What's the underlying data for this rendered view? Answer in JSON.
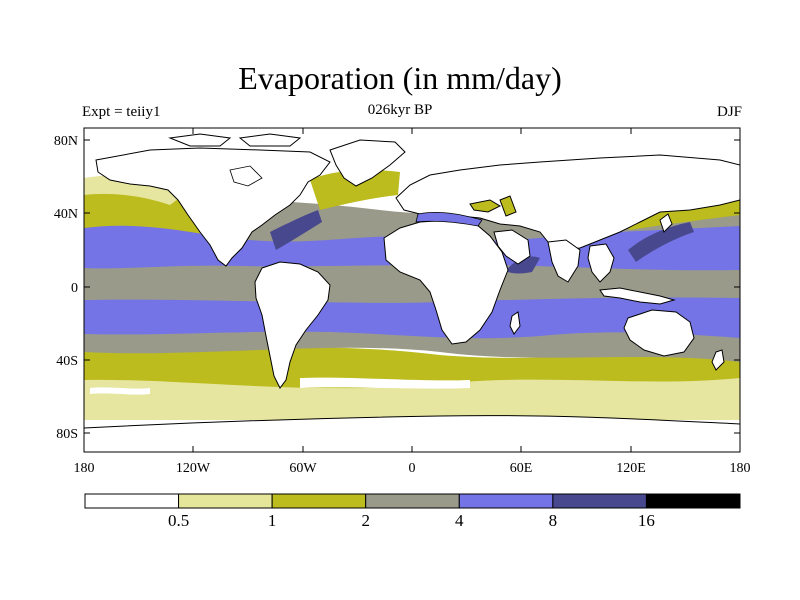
{
  "header": {
    "title": "Evaporation (in mm/day)",
    "subtitle": "026kyr BP",
    "left_label": "Expt = teiiy1",
    "right_label": "DJF"
  },
  "axes": {
    "y_ticks": [
      "80N",
      "40N",
      "0",
      "40S",
      "80S"
    ],
    "x_ticks": [
      "180",
      "120W",
      "60W",
      "0",
      "60E",
      "120E",
      "180"
    ]
  },
  "colorbar": {
    "colors": [
      "#ffffff",
      "#e6e69a",
      "#bcbc1e",
      "#9a9a8a",
      "#7474e6",
      "#48488e",
      "#000000"
    ],
    "labels": [
      "0.5",
      "1",
      "2",
      "4",
      "8",
      "16"
    ]
  },
  "legend_colors": {
    "land": "#ffffff",
    "coast": "#000000"
  }
}
